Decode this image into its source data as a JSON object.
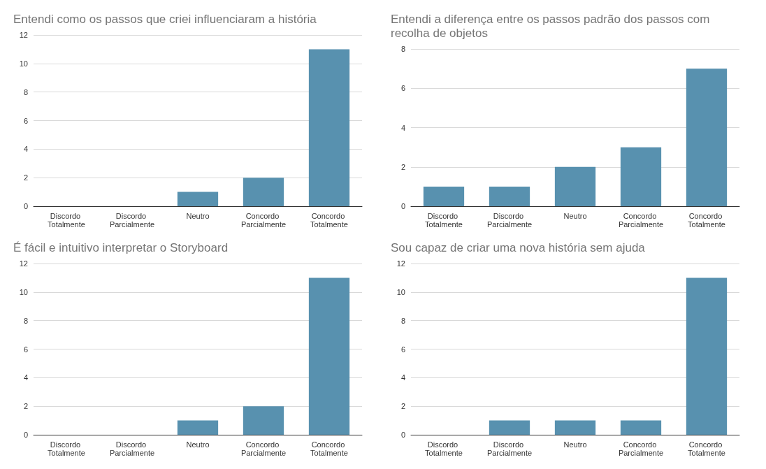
{
  "chart_data": [
    {
      "type": "bar",
      "title": "Entendi como os passos que criei influenciaram a história",
      "categories": [
        "Discordo Totalmente",
        "Discordo Parcialmente",
        "Neutro",
        "Concordo Parcialmente",
        "Concordo Totalmente"
      ],
      "values": [
        0,
        0,
        1,
        2,
        11
      ],
      "color": "#5891af",
      "ylim": [
        0,
        12
      ],
      "yticks": [
        0,
        2,
        4,
        6,
        8,
        10,
        12
      ],
      "grid": "y"
    },
    {
      "type": "bar",
      "title": "Entendi a diferença entre os passos padrão dos passos com recolha de objetos",
      "categories": [
        "Discordo Totalmente",
        "Discordo Parcialmente",
        "Neutro",
        "Concordo Parcialmente",
        "Concordo Totalmente"
      ],
      "values": [
        1,
        1,
        2,
        3,
        7
      ],
      "color": "#5891af",
      "ylim": [
        0,
        8
      ],
      "yticks": [
        0,
        2,
        4,
        6,
        8
      ],
      "grid": "y"
    },
    {
      "type": "bar",
      "title": "É fácil e intuitivo interpretar o Storyboard",
      "categories": [
        "Discordo Totalmente",
        "Discordo Parcialmente",
        "Neutro",
        "Concordo Parcialmente",
        "Concordo Totalmente"
      ],
      "values": [
        0,
        0,
        1,
        2,
        11
      ],
      "color": "#5891af",
      "ylim": [
        0,
        12
      ],
      "yticks": [
        0,
        2,
        4,
        6,
        8,
        10,
        12
      ],
      "grid": "y"
    },
    {
      "type": "bar",
      "title": "Sou capaz de criar uma nova história sem ajuda",
      "categories": [
        "Discordo Totalmente",
        "Discordo Parcialmente",
        "Neutro",
        "Concordo Parcialmente",
        "Concordo Totalmente"
      ],
      "values": [
        0,
        1,
        1,
        1,
        11
      ],
      "color": "#5891af",
      "ylim": [
        0,
        12
      ],
      "yticks": [
        0,
        2,
        4,
        6,
        8,
        10,
        12
      ],
      "grid": "y"
    }
  ]
}
